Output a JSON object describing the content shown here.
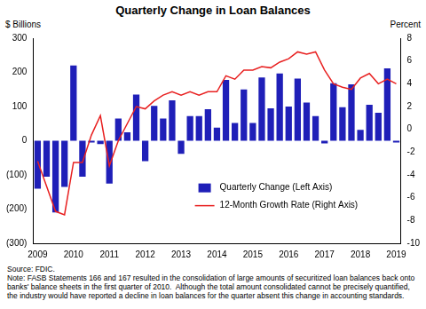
{
  "chart_data": {
    "type": "bar",
    "title": "Quarterly Change in Loan Balances",
    "y_label": "$ Billions",
    "y2_label": "Percent",
    "source": "Source: FDIC.",
    "note": "Note: FASB Statements 166 and 167 resulted in the consolidation of large amounts of securitized loan balances back onto banks' balance sheets in the first quarter of 2010.  Although the total amount consolidated cannot be precisely quantified, the industry would have reported a decline in loan balances for the quarter absent this change in accounting standards.",
    "categories": [
      "2009",
      null,
      null,
      null,
      "2010",
      null,
      null,
      null,
      "2011",
      null,
      null,
      null,
      "2012",
      null,
      null,
      null,
      "2013",
      null,
      null,
      null,
      "2014",
      null,
      null,
      null,
      "2015",
      null,
      null,
      null,
      "2016",
      null,
      null,
      null,
      "2017",
      null,
      null,
      null,
      "2018",
      null,
      null,
      null,
      "2019"
    ],
    "series": [
      {
        "name": "Quarterly Change (Left Axis)",
        "type": "bar",
        "color": "#1f1fb8",
        "values": [
          -140,
          -105,
          -210,
          -135,
          220,
          -105,
          -5,
          -10,
          -125,
          65,
          25,
          135,
          -60,
          102,
          65,
          118,
          -38,
          72,
          72,
          92,
          38,
          178,
          52,
          150,
          52,
          185,
          95,
          197,
          100,
          182,
          112,
          72,
          -8,
          168,
          98,
          165,
          32,
          105,
          82,
          212,
          -5
        ]
      },
      {
        "name": "12-Month Growth Rate (Right Axis)",
        "type": "line",
        "axis": "y2",
        "color": "#e82020",
        "values": [
          -2.8,
          -5,
          -7.2,
          -7.5,
          -2.9,
          -2.9,
          -0.5,
          1.2,
          -3.2,
          -1,
          0.5,
          2,
          1.8,
          2.5,
          3,
          3.3,
          3,
          3.3,
          3,
          3.3,
          3.3,
          4.7,
          4.4,
          5.2,
          5.2,
          5.5,
          5.4,
          5.9,
          6.2,
          6.8,
          6.6,
          6.8,
          5.2,
          4,
          3.7,
          3.5,
          4.5,
          4.9,
          4,
          4.4,
          4
        ]
      }
    ],
    "ylim": [
      -300,
      300
    ],
    "yticks": [
      {
        "value": -300,
        "label": "(300)"
      },
      {
        "value": -200,
        "label": "(200)"
      },
      {
        "value": -100,
        "label": "(100)"
      },
      0,
      100,
      200,
      300
    ],
    "y2lim": [
      -10,
      8
    ],
    "y2ticks": [
      -10,
      -8,
      -6,
      -4,
      -2,
      0,
      2,
      4,
      6,
      8
    ],
    "grid": false,
    "legend": "lower right"
  }
}
